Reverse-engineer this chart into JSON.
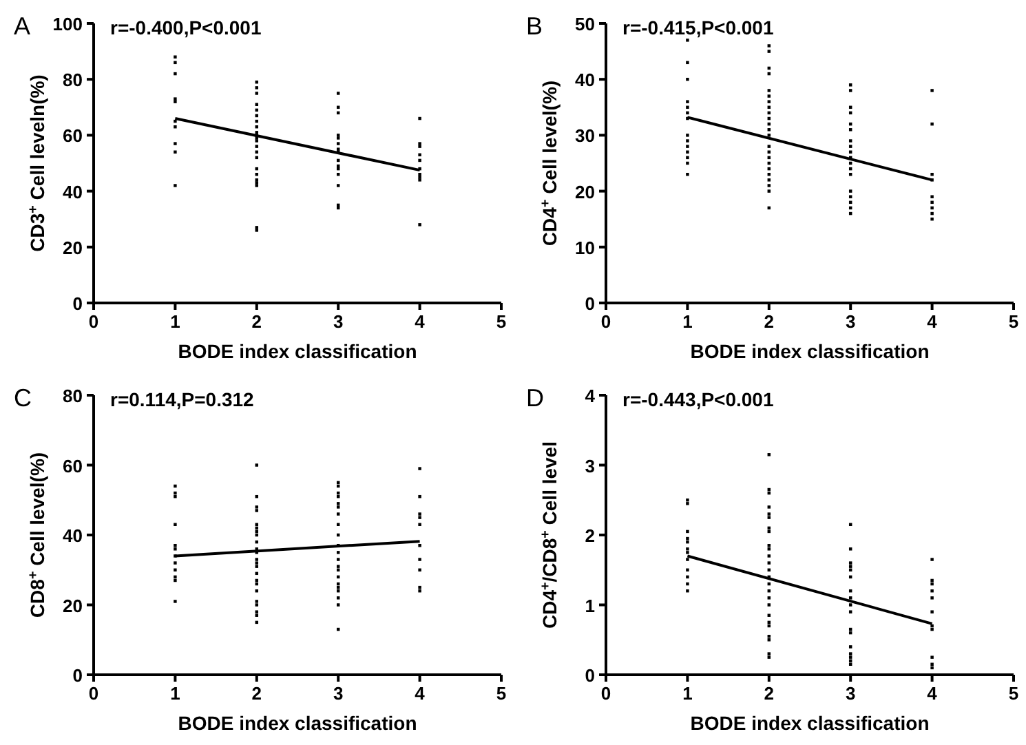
{
  "chart_data": [
    {
      "type": "scatter",
      "xlabel": "BODE index classification",
      "ylabel": "CD3$^{+}$ Cell leveln(%)",
      "annotations": [
        "A",
        "r=-0.400,P<0.001"
      ],
      "xlim": [
        0,
        5
      ],
      "xticks": [
        0,
        1,
        2,
        3,
        4,
        5
      ],
      "ylim": [
        0,
        100
      ],
      "yticks": [
        0,
        20,
        40,
        60,
        80,
        100
      ],
      "grid": false,
      "marker": "square",
      "series": [
        {
          "color": "#000000",
          "x": [
            1,
            1,
            1,
            1,
            1,
            1,
            1,
            1,
            1,
            1,
            2,
            2,
            2,
            2,
            2,
            2,
            2,
            2,
            2,
            2,
            2,
            2,
            2,
            2,
            2,
            2,
            2,
            2,
            2,
            2,
            2,
            2,
            3,
            3,
            3,
            3,
            3,
            3,
            3,
            3,
            3,
            3,
            3,
            3,
            3,
            3,
            3,
            4,
            4,
            4,
            4,
            4,
            4,
            4,
            4,
            4,
            4
          ],
          "values": [
            88,
            86,
            82,
            73,
            72,
            65,
            63,
            57,
            54,
            42,
            79,
            77,
            75,
            71,
            69,
            67,
            65,
            63,
            61,
            60,
            59,
            58,
            56,
            54,
            52,
            48,
            46,
            44,
            43,
            42,
            27,
            26,
            75,
            70,
            68,
            60,
            59,
            57,
            55,
            54,
            51,
            49,
            48,
            46,
            42,
            35,
            34,
            66,
            57,
            56,
            53,
            51,
            48,
            46,
            45,
            44,
            28
          ]
        },
        {
          "type": "line",
          "color": "#000000",
          "marker": "none",
          "line_style": "solid",
          "x": [
            1,
            4
          ],
          "values": [
            66,
            47.5
          ]
        }
      ]
    },
    {
      "type": "scatter",
      "xlabel": "BODE index classification",
      "ylabel": "CD4$^{+}$ Cell level(%)",
      "annotations": [
        "B",
        "r=-0.415,P<0.001"
      ],
      "xlim": [
        0,
        5
      ],
      "xticks": [
        0,
        1,
        2,
        3,
        4,
        5
      ],
      "ylim": [
        0,
        50
      ],
      "yticks": [
        0,
        10,
        20,
        30,
        40,
        50
      ],
      "grid": false,
      "marker": "square",
      "series": [
        {
          "color": "#000000",
          "x": [
            1,
            1,
            1,
            1,
            1,
            1,
            1,
            1,
            1,
            1,
            1,
            1,
            1,
            1,
            2,
            2,
            2,
            2,
            2,
            2,
            2,
            2,
            2,
            2,
            2,
            2,
            2,
            2,
            2,
            2,
            2,
            2,
            2,
            2,
            2,
            2,
            2,
            3,
            3,
            3,
            3,
            3,
            3,
            3,
            3,
            3,
            3,
            3,
            3,
            3,
            3,
            3,
            3,
            3,
            3,
            4,
            4,
            4,
            4,
            4,
            4,
            4,
            4,
            4
          ],
          "values": [
            47,
            43,
            40,
            36,
            35,
            34,
            33,
            30,
            29,
            28,
            27,
            26,
            25,
            23,
            46,
            45,
            42,
            41,
            38,
            37,
            36,
            35,
            34,
            33,
            32,
            31,
            30,
            28,
            27,
            26,
            25,
            24,
            23,
            22,
            21,
            20,
            17,
            39,
            38,
            35,
            34,
            32,
            31,
            29,
            28,
            27,
            26,
            25,
            24,
            23,
            20,
            19,
            18,
            17,
            16,
            38,
            32,
            23,
            22,
            19,
            18,
            17,
            16,
            15
          ]
        },
        {
          "type": "line",
          "color": "#000000",
          "marker": "none",
          "line_style": "solid",
          "x": [
            1,
            4
          ],
          "values": [
            33.2,
            22
          ]
        }
      ]
    },
    {
      "type": "scatter",
      "xlabel": "BODE index classification",
      "ylabel": "CD8$^{+}$ Cell level(%)",
      "annotations": [
        "C",
        "r=0.114,P=0.312"
      ],
      "xlim": [
        0,
        5
      ],
      "xticks": [
        0,
        1,
        2,
        3,
        4,
        5
      ],
      "ylim": [
        0,
        80
      ],
      "yticks": [
        0,
        20,
        40,
        60,
        80
      ],
      "grid": false,
      "marker": "square",
      "series": [
        {
          "color": "#000000",
          "x": [
            1,
            1,
            1,
            1,
            1,
            1,
            1,
            1,
            1,
            1,
            1,
            1,
            2,
            2,
            2,
            2,
            2,
            2,
            2,
            2,
            2,
            2,
            2,
            2,
            2,
            2,
            2,
            2,
            2,
            2,
            2,
            2,
            2,
            2,
            2,
            3,
            3,
            3,
            3,
            3,
            3,
            3,
            3,
            3,
            3,
            3,
            3,
            3,
            3,
            3,
            3,
            3,
            3,
            3,
            3,
            3,
            4,
            4,
            4,
            4,
            4,
            4,
            4,
            4,
            4,
            4
          ],
          "values": [
            54,
            52,
            51,
            43,
            37,
            36,
            34,
            32,
            30,
            28,
            27,
            21,
            60,
            51,
            48,
            47,
            43,
            42,
            41,
            40,
            38,
            36,
            35,
            33,
            32,
            31,
            29,
            27,
            26,
            24,
            21,
            20,
            18,
            17,
            15,
            55,
            54,
            52,
            51,
            49,
            48,
            46,
            43,
            40,
            37,
            35,
            33,
            31,
            30,
            28,
            26,
            25,
            24,
            22,
            20,
            13,
            59,
            51,
            46,
            45,
            43,
            37,
            33,
            30,
            25,
            24
          ]
        },
        {
          "type": "line",
          "color": "#000000",
          "marker": "none",
          "line_style": "solid",
          "x": [
            1,
            4
          ],
          "values": [
            34,
            38.2
          ]
        }
      ]
    },
    {
      "type": "scatter",
      "xlabel": "BODE index classification",
      "ylabel": "CD4$^{+}$/CD8$^{+}$ Cell level",
      "annotations": [
        "D",
        "r=-0.443,P<0.001"
      ],
      "xlim": [
        0,
        5
      ],
      "xticks": [
        0,
        1,
        2,
        3,
        4,
        5
      ],
      "ylim": [
        0,
        4
      ],
      "yticks": [
        0,
        1,
        2,
        3,
        4
      ],
      "grid": false,
      "marker": "square",
      "series": [
        {
          "color": "#000000",
          "x": [
            1,
            1,
            1,
            1,
            1,
            1,
            1,
            1,
            1,
            1,
            1,
            1,
            2,
            2,
            2,
            2,
            2,
            2,
            2,
            2,
            2,
            2,
            2,
            2,
            2,
            2,
            2,
            2,
            2,
            2,
            2,
            2,
            2,
            2,
            2,
            2,
            2,
            3,
            3,
            3,
            3,
            3,
            3,
            3,
            3,
            3,
            3,
            3,
            3,
            3,
            3,
            3,
            3,
            3,
            4,
            4,
            4,
            4,
            4,
            4,
            4,
            4,
            4,
            4,
            4
          ],
          "values": [
            2.5,
            2.45,
            2.05,
            1.95,
            1.9,
            1.8,
            1.75,
            1.65,
            1.5,
            1.4,
            1.3,
            1.2,
            3.15,
            2.65,
            2.6,
            2.4,
            2.3,
            2.25,
            2.1,
            2.05,
            1.85,
            1.8,
            1.7,
            1.6,
            1.5,
            1.4,
            1.3,
            1.2,
            1.1,
            1.0,
            0.85,
            0.75,
            0.7,
            0.55,
            0.5,
            0.3,
            0.25,
            2.15,
            1.8,
            1.6,
            1.55,
            1.5,
            1.4,
            1.2,
            1.1,
            1.0,
            0.9,
            0.65,
            0.6,
            0.4,
            0.3,
            0.25,
            0.2,
            0.15,
            1.65,
            1.35,
            1.3,
            1.2,
            1.1,
            0.9,
            0.7,
            0.65,
            0.25,
            0.15,
            0.1
          ]
        },
        {
          "type": "line",
          "color": "#000000",
          "marker": "none",
          "line_style": "solid",
          "x": [
            1,
            4
          ],
          "values": [
            1.7,
            0.73
          ]
        }
      ]
    }
  ]
}
